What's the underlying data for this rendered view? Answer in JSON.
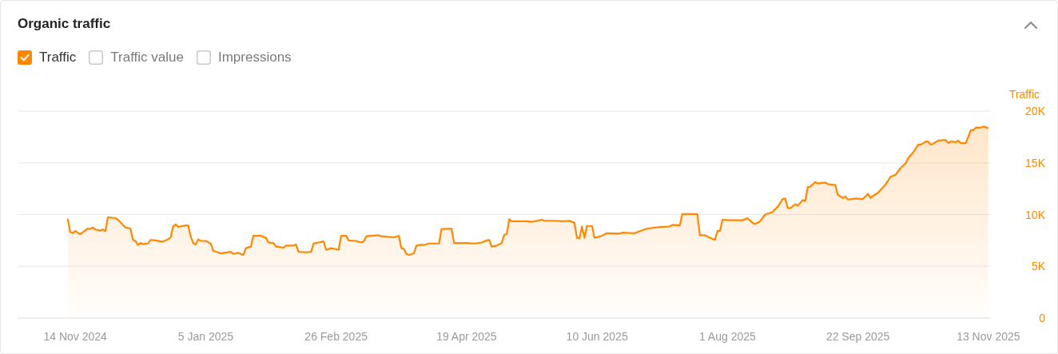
{
  "chart_data": {
    "type": "area",
    "title": "Organic traffic",
    "ylabel": "Traffic",
    "legend": "top left",
    "grid": "y",
    "annotations": [
      "Traffic value",
      "Impressions"
    ],
    "xlim": [
      "2024-10-22",
      "2025-11-14"
    ],
    "xticks": [
      {
        "value": "2024-11-14",
        "label": "14 Nov 2024"
      },
      {
        "value": "2025-01-05",
        "label": "5 Jan 2025"
      },
      {
        "value": "2025-02-26",
        "label": "26 Feb 2025"
      },
      {
        "value": "2025-04-19",
        "label": "19 Apr 2025"
      },
      {
        "value": "2025-06-10",
        "label": "10 Jun 2025"
      },
      {
        "value": "2025-08-01",
        "label": "1 Aug 2025"
      },
      {
        "value": "2025-09-22",
        "label": "22 Sep 2025"
      },
      {
        "value": "2025-11-13",
        "label": "13 Nov 2025"
      }
    ],
    "ylim": [
      0,
      20000
    ],
    "yticks": [
      0,
      {
        "value": 5000,
        "label": "5K"
      },
      {
        "value": 10000,
        "label": "10K"
      },
      {
        "value": 15000,
        "label": "15K"
      },
      {
        "value": 20000,
        "label": "20K"
      }
    ],
    "x": [
      "2024-11-11",
      "2024-11-12",
      "2024-11-13",
      "2024-11-14",
      "2024-11-16",
      "2024-11-19",
      "2024-11-20",
      "2024-11-21",
      "2024-11-22",
      "2024-11-24",
      "2024-11-25",
      "2024-11-26",
      "2024-11-27",
      "2024-11-30",
      "2024-12-01",
      "2024-12-03",
      "2024-12-04",
      "2024-12-06",
      "2024-12-07",
      "2024-12-08",
      "2024-12-09",
      "2024-12-10",
      "2024-12-11",
      "2024-12-13",
      "2024-12-14",
      "2024-12-16",
      "2024-12-18",
      "2024-12-19",
      "2024-12-21",
      "2024-12-22",
      "2024-12-23",
      "2024-12-24",
      "2024-12-25",
      "2024-12-28",
      "2024-12-29",
      "2024-12-30",
      "2024-12-31",
      "2025-01-01",
      "2025-01-02",
      "2025-01-03",
      "2025-01-05",
      "2025-01-07",
      "2025-01-08",
      "2025-01-11",
      "2025-01-15",
      "2025-01-16",
      "2025-01-18",
      "2025-01-20",
      "2025-01-21",
      "2025-01-23",
      "2025-01-24",
      "2025-01-27",
      "2025-01-29",
      "2025-01-30",
      "2025-02-01",
      "2025-02-02",
      "2025-02-05",
      "2025-02-06",
      "2025-02-09",
      "2025-02-10",
      "2025-02-11",
      "2025-02-14",
      "2025-02-16",
      "2025-02-17",
      "2025-02-21",
      "2025-02-22",
      "2025-02-24",
      "2025-02-27",
      "2025-02-28",
      "2025-03-02",
      "2025-03-03",
      "2025-03-06",
      "2025-03-08",
      "2025-03-09",
      "2025-03-10",
      "2025-03-15",
      "2025-03-16",
      "2025-03-21",
      "2025-03-23",
      "2025-03-24",
      "2025-03-25",
      "2025-03-26",
      "2025-03-27",
      "2025-03-29",
      "2025-03-30",
      "2025-04-01",
      "2025-04-02",
      "2025-04-04",
      "2025-04-08",
      "2025-04-09",
      "2025-04-13",
      "2025-04-14",
      "2025-04-19",
      "2025-04-22",
      "2025-04-25",
      "2025-04-27",
      "2025-04-28",
      "2025-04-29",
      "2025-05-01",
      "2025-05-03",
      "2025-05-04",
      "2025-05-05",
      "2025-05-06",
      "2025-05-07",
      "2025-05-13",
      "2025-05-15",
      "2025-05-19",
      "2025-05-20",
      "2025-05-24",
      "2025-05-27",
      "2025-05-30",
      "2025-06-01",
      "2025-06-02",
      "2025-06-03",
      "2025-06-04",
      "2025-06-05",
      "2025-06-06",
      "2025-06-08",
      "2025-06-09",
      "2025-06-12",
      "2025-06-14",
      "2025-06-19",
      "2025-06-20",
      "2025-06-25",
      "2025-06-26",
      "2025-06-30",
      "2025-07-05",
      "2025-07-09",
      "2025-07-10",
      "2025-07-13",
      "2025-07-14",
      "2025-07-20",
      "2025-07-21",
      "2025-07-23",
      "2025-07-26",
      "2025-07-27",
      "2025-07-28",
      "2025-07-29",
      "2025-07-30",
      "2025-08-02",
      "2025-08-07",
      "2025-08-09",
      "2025-08-11",
      "2025-08-12",
      "2025-08-14",
      "2025-08-16",
      "2025-08-19",
      "2025-08-21",
      "2025-08-23",
      "2025-08-24",
      "2025-08-25",
      "2025-08-26",
      "2025-08-28",
      "2025-08-29",
      "2025-08-31",
      "2025-09-01",
      "2025-09-02",
      "2025-09-03",
      "2025-09-05",
      "2025-09-06",
      "2025-09-09",
      "2025-09-10",
      "2025-09-13",
      "2025-09-14",
      "2025-09-16",
      "2025-09-17",
      "2025-09-18",
      "2025-09-21",
      "2025-09-24",
      "2025-09-26",
      "2025-09-27",
      "2025-09-28",
      "2025-09-30",
      "2025-10-03",
      "2025-10-05",
      "2025-10-07",
      "2025-10-09",
      "2025-10-11",
      "2025-10-12",
      "2025-10-14",
      "2025-10-16",
      "2025-10-17",
      "2025-10-19",
      "2025-10-20",
      "2025-10-21",
      "2025-10-22",
      "2025-10-24",
      "2025-10-27",
      "2025-10-28",
      "2025-10-29",
      "2025-10-31",
      "2025-11-01",
      "2025-11-02",
      "2025-11-04",
      "2025-11-06",
      "2025-11-07",
      "2025-11-08",
      "2025-11-10",
      "2025-11-11",
      "2025-11-13"
    ],
    "series": [
      {
        "name": "Traffic",
        "color": "#ff8800",
        "values": [
          9600,
          8300,
          8200,
          8400,
          8100,
          8650,
          8600,
          8750,
          8550,
          8450,
          8550,
          8400,
          9750,
          9650,
          9500,
          9000,
          8750,
          8650,
          7550,
          7450,
          7050,
          7250,
          7150,
          7200,
          7550,
          7500,
          7400,
          7400,
          7600,
          7800,
          8850,
          9050,
          8800,
          8950,
          8950,
          7900,
          7250,
          7100,
          7600,
          7450,
          7450,
          7200,
          6500,
          6250,
          6400,
          6200,
          6300,
          6100,
          6750,
          6900,
          7950,
          7950,
          7750,
          7300,
          7250,
          6900,
          6800,
          7000,
          7000,
          7100,
          6400,
          6350,
          6400,
          7200,
          7400,
          6600,
          6750,
          6600,
          7950,
          7950,
          7500,
          7450,
          7300,
          7400,
          7900,
          8000,
          7900,
          7800,
          7950,
          6750,
          6700,
          6200,
          6100,
          6250,
          7000,
          7100,
          7050,
          7200,
          7200,
          8600,
          8650,
          7250,
          7250,
          7200,
          7300,
          7500,
          7550,
          6900,
          7000,
          7250,
          8050,
          8100,
          9550,
          9350,
          9350,
          9300,
          9500,
          9400,
          9400,
          9350,
          9400,
          9200,
          7750,
          7700,
          8850,
          7750,
          8900,
          8900,
          7750,
          7950,
          8200,
          8150,
          8250,
          8200,
          8300,
          8650,
          8800,
          8850,
          9000,
          8950,
          10050,
          10050,
          8000,
          8000,
          7650,
          7550,
          8400,
          8400,
          9500,
          9450,
          9450,
          9650,
          9200,
          9100,
          9350,
          10000,
          10250,
          10750,
          11500,
          11550,
          10650,
          10600,
          11000,
          10850,
          11400,
          11300,
          12650,
          12700,
          13150,
          13000,
          13100,
          12950,
          12850,
          11900,
          11600,
          11750,
          11450,
          11550,
          11500,
          12000,
          11600,
          11800,
          12100,
          12900,
          13650,
          13850,
          14500,
          14950,
          15450,
          16000,
          16750,
          16750,
          17050,
          17050,
          16750,
          16850,
          17150,
          17200,
          16900,
          17050,
          17000,
          17150,
          16900,
          16900,
          18150,
          18150,
          18400,
          18400,
          18500,
          18350
        ]
      }
    ]
  }
}
